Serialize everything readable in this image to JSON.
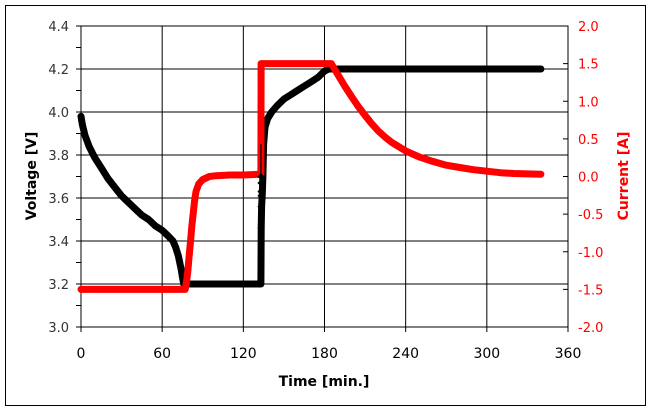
{
  "chart_data": {
    "type": "line",
    "title": "",
    "xlabel": "Time [min.]",
    "ylabel": "Voltage [V]",
    "y2label": "Current [A]",
    "xlim": [
      0,
      360
    ],
    "ylim": [
      3.0,
      4.4
    ],
    "y2lim": [
      -2.0,
      2.0
    ],
    "x_ticks": [
      "0",
      "60",
      "120",
      "180",
      "240",
      "300",
      "360"
    ],
    "y_ticks": [
      "3.0",
      "3.2",
      "3.4",
      "3.6",
      "3.8",
      "4.0",
      "4.2",
      "4.4"
    ],
    "y2_ticks": [
      "-2.0",
      "-1.5",
      "-1.0",
      "-0.5",
      "0.0",
      "0.5",
      "1.0",
      "1.5",
      "2.0"
    ],
    "grid": true,
    "legend": null,
    "series": [
      {
        "name": "Voltage",
        "axis": "left",
        "color": "#000000",
        "x": [
          0,
          1,
          3,
          6,
          10,
          15,
          20,
          25,
          30,
          35,
          40,
          45,
          50,
          55,
          60,
          65,
          68,
          70,
          72,
          74,
          75,
          76,
          80,
          90,
          100,
          110,
          120,
          133,
          133.2,
          133.5,
          134,
          134.5,
          135,
          136,
          138,
          141,
          145,
          150,
          155,
          160,
          165,
          170,
          175,
          180,
          183,
          190,
          220,
          260,
          300,
          340
        ],
        "values": [
          3.98,
          3.94,
          3.89,
          3.84,
          3.79,
          3.74,
          3.69,
          3.65,
          3.61,
          3.58,
          3.55,
          3.52,
          3.5,
          3.47,
          3.45,
          3.42,
          3.4,
          3.37,
          3.33,
          3.27,
          3.23,
          3.2,
          3.2,
          3.2,
          3.2,
          3.2,
          3.2,
          3.2,
          3.46,
          3.56,
          3.62,
          3.7,
          3.85,
          3.93,
          3.97,
          4.0,
          4.03,
          4.06,
          4.08,
          4.1,
          4.12,
          4.14,
          4.16,
          4.19,
          4.2,
          4.2,
          4.2,
          4.2,
          4.2,
          4.2
        ]
      },
      {
        "name": "Current",
        "axis": "right",
        "color": "#ff0000",
        "x": [
          0,
          30,
          60,
          77,
          78,
          79,
          80,
          81,
          82,
          83,
          84,
          85,
          87,
          90,
          95,
          100,
          110,
          120,
          133,
          133.1,
          150,
          170,
          185,
          190,
          195,
          200,
          205,
          210,
          215,
          220,
          225,
          230,
          240,
          250,
          260,
          270,
          280,
          290,
          300,
          310,
          320,
          330,
          340
        ],
        "values": [
          -1.5,
          -1.5,
          -1.5,
          -1.5,
          -1.4,
          -1.25,
          -1.05,
          -0.85,
          -0.65,
          -0.48,
          -0.32,
          -0.2,
          -0.1,
          -0.04,
          0.0,
          0.01,
          0.02,
          0.02,
          0.03,
          1.5,
          1.5,
          1.5,
          1.5,
          1.35,
          1.2,
          1.06,
          0.93,
          0.81,
          0.7,
          0.6,
          0.52,
          0.45,
          0.34,
          0.26,
          0.2,
          0.15,
          0.12,
          0.09,
          0.07,
          0.05,
          0.04,
          0.035,
          0.03
        ]
      }
    ]
  }
}
